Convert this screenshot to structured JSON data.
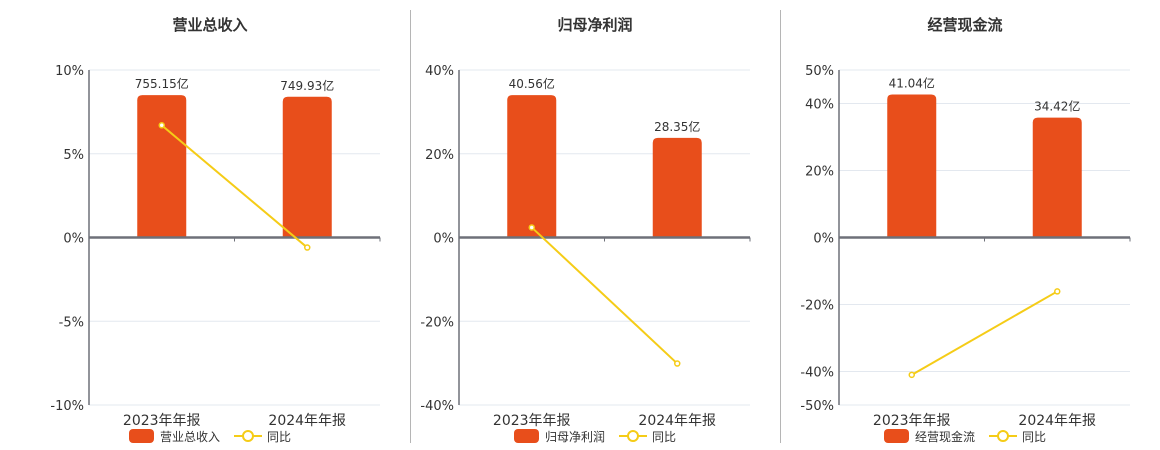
{
  "colors": {
    "bar": "#E84E1B",
    "line": "#F5CC17",
    "grid": "#E3E8EF",
    "axis": "#6E7079",
    "text": "#333333",
    "divider": "#B5B5B5"
  },
  "legend": {
    "line_label": "同比"
  },
  "chart_data": [
    {
      "type": "bar+line",
      "title": "营业总收入",
      "categories": [
        "2023年年报",
        "2024年年报"
      ],
      "series": [
        {
          "name": "营业总收入",
          "type": "bar",
          "values": [
            755.15,
            749.93
          ],
          "labels": [
            "755.15亿",
            "749.93亿"
          ],
          "unit": "亿"
        },
        {
          "name": "同比",
          "type": "line",
          "values": [
            6.7,
            -0.6
          ],
          "unit": "%"
        }
      ],
      "bar_heights_pct_axis": [
        8.5,
        8.4
      ],
      "y_ticks": [
        "10%",
        "5%",
        "0%",
        "-5%",
        "-10%"
      ],
      "ylim": [
        -10,
        10
      ],
      "grid": true,
      "legend_position": "bottom"
    },
    {
      "type": "bar+line",
      "title": "归母净利润",
      "categories": [
        "2023年年报",
        "2024年年报"
      ],
      "series": [
        {
          "name": "归母净利润",
          "type": "bar",
          "values": [
            40.56,
            28.35
          ],
          "labels": [
            "40.56亿",
            "28.35亿"
          ],
          "unit": "亿"
        },
        {
          "name": "同比",
          "type": "line",
          "values": [
            2.4,
            -30.1
          ],
          "unit": "%"
        }
      ],
      "bar_heights_pct_axis": [
        34.0,
        23.8
      ],
      "y_ticks": [
        "40%",
        "20%",
        "0%",
        "-20%",
        "-40%"
      ],
      "ylim": [
        -40,
        40
      ],
      "grid": true,
      "legend_position": "bottom"
    },
    {
      "type": "bar+line",
      "title": "经营现金流",
      "categories": [
        "2023年年报",
        "2024年年报"
      ],
      "series": [
        {
          "name": "经营现金流",
          "type": "bar",
          "values": [
            41.04,
            34.42
          ],
          "labels": [
            "41.04亿",
            "34.42亿"
          ],
          "unit": "亿"
        },
        {
          "name": "同比",
          "type": "line",
          "values": [
            -41.0,
            -16.1
          ],
          "unit": "%"
        }
      ],
      "bar_heights_pct_axis": [
        42.7,
        35.8
      ],
      "y_ticks": [
        "50%",
        "40%",
        "20%",
        "0%",
        "-20%",
        "-40%",
        "-50%"
      ],
      "ylim": [
        -50,
        50
      ],
      "grid": true,
      "legend_position": "bottom"
    }
  ]
}
